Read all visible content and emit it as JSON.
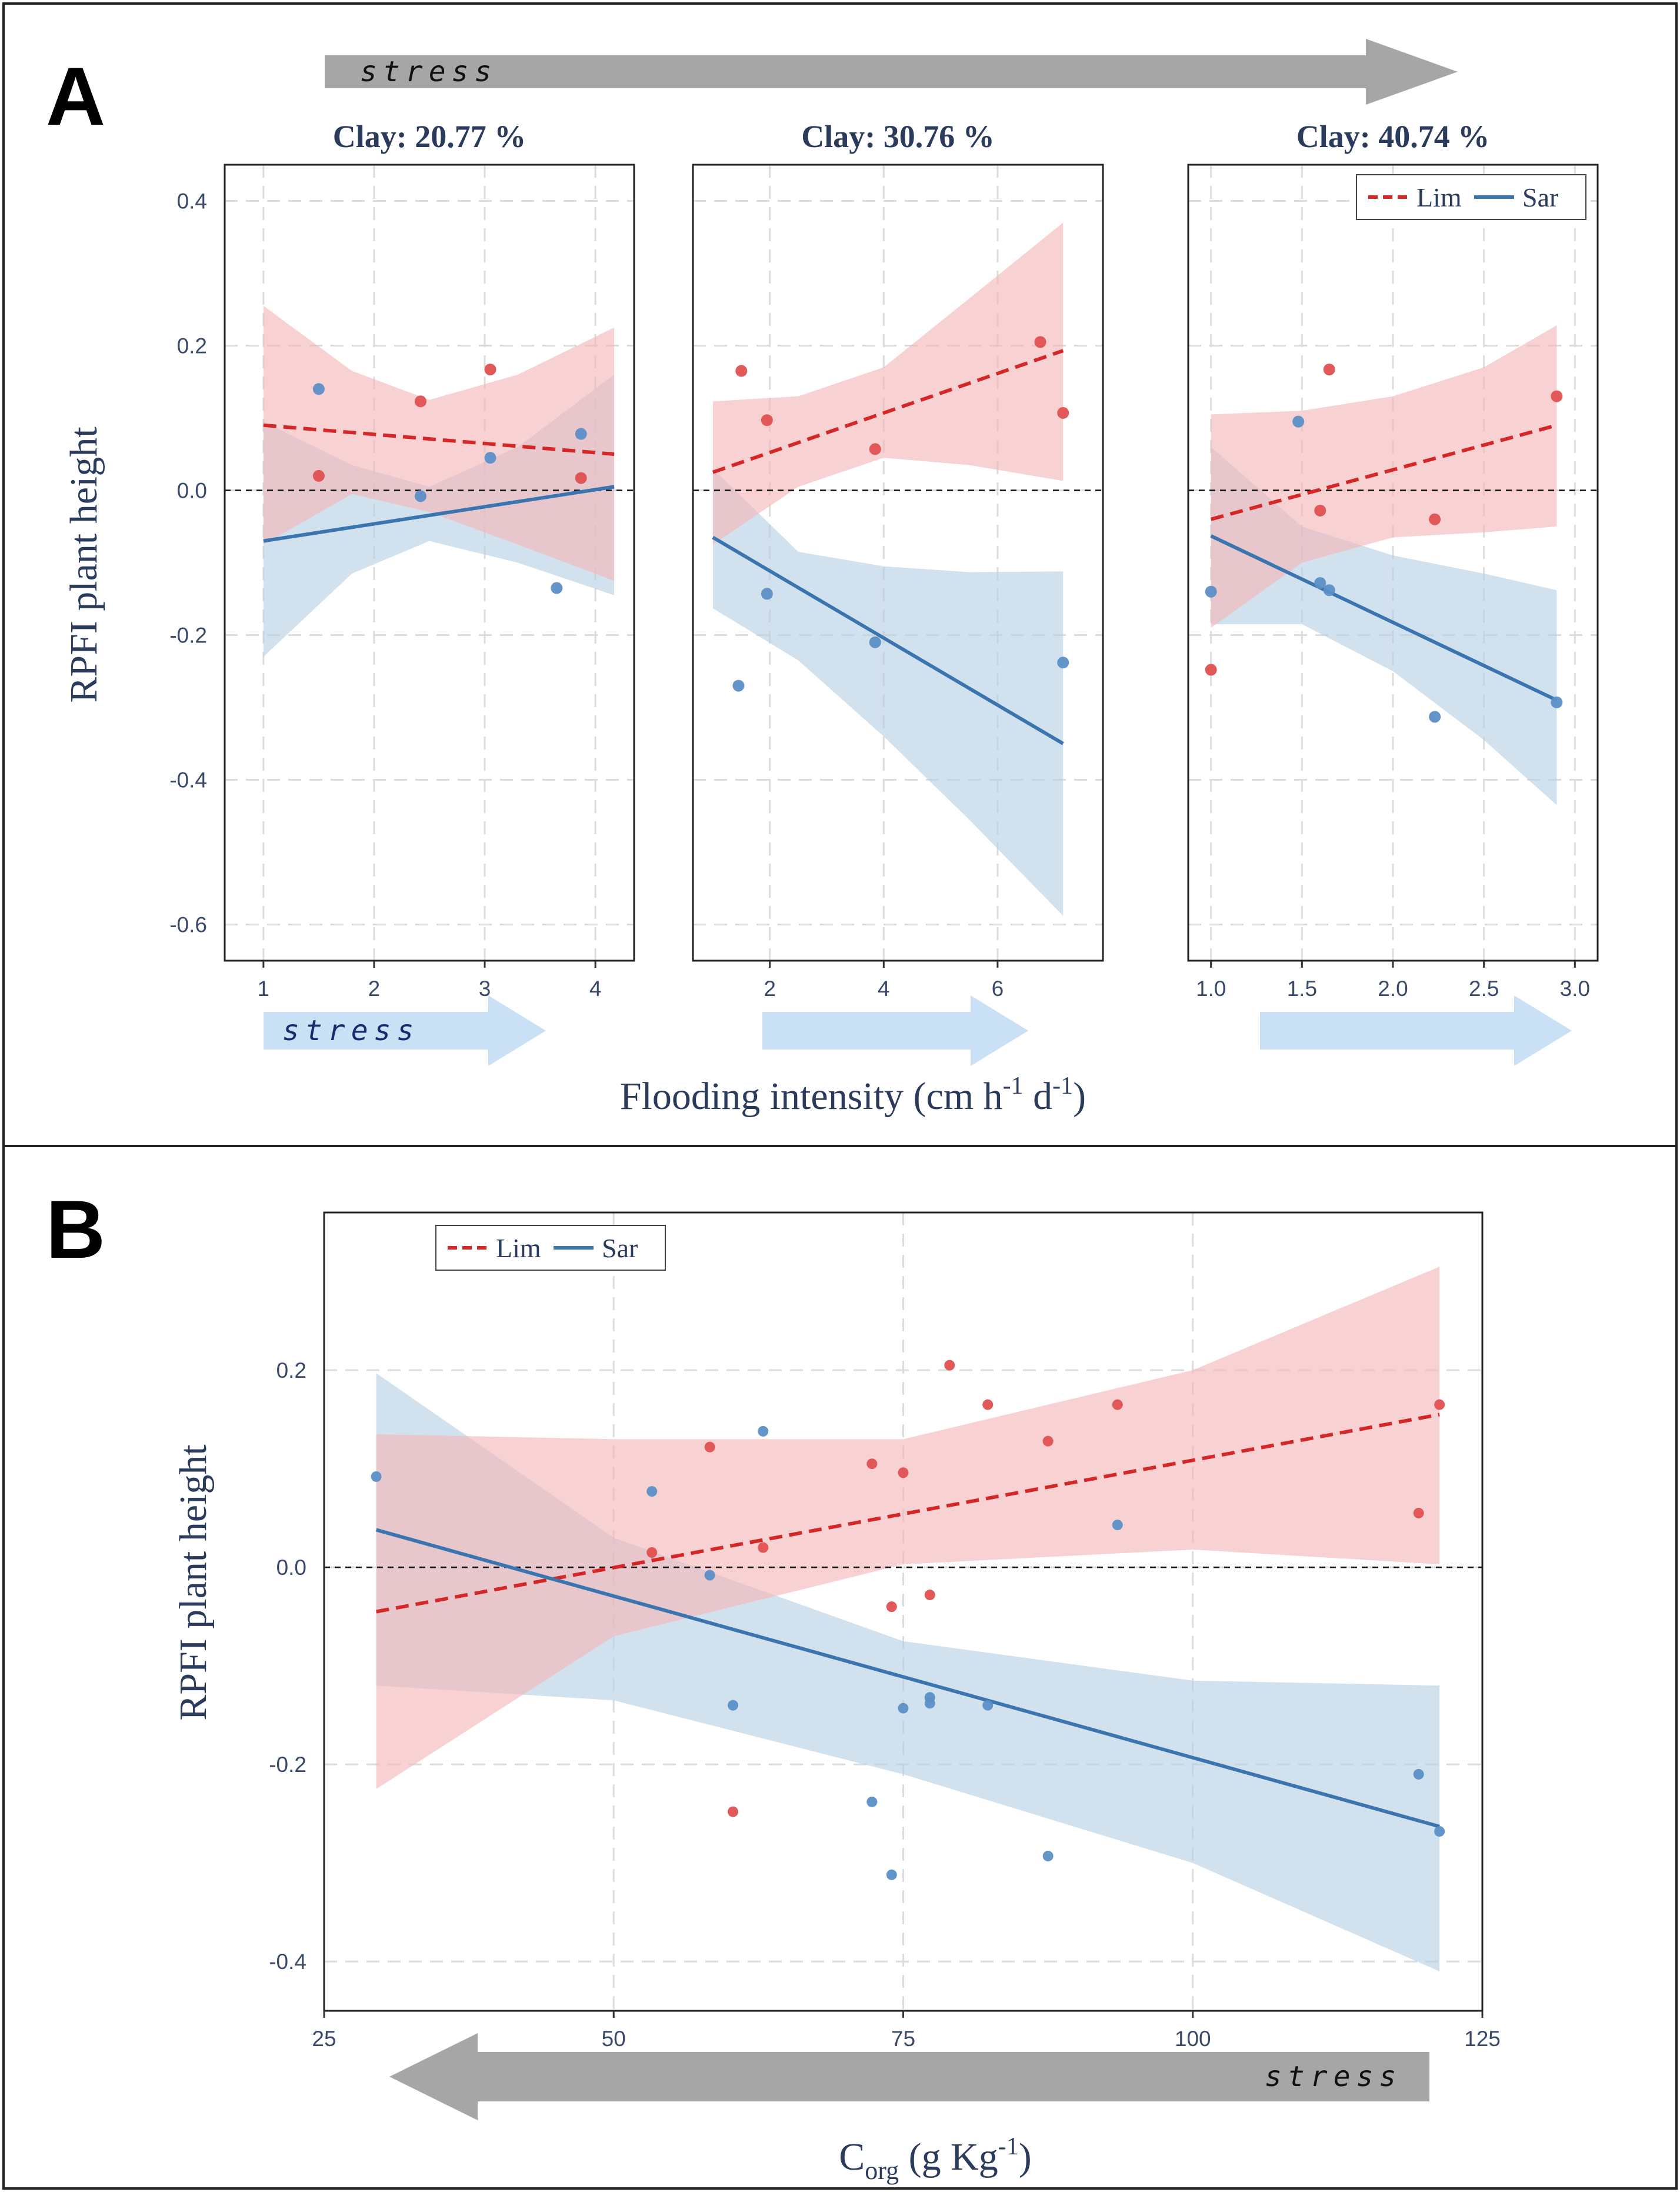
{
  "figure": {
    "panel_a_letter": "A",
    "panel_b_letter": "B",
    "stress_label": "stress",
    "colors": {
      "lim": "#d62728",
      "sar": "#3a75b0",
      "lim_band": "#f4b6b6",
      "sar_band": "#b7cfe4",
      "arrow_gray": "#a6a6a6",
      "arrow_blue": "#c9e0f5"
    }
  },
  "panel_a": {
    "xlabel_main": "Flooding intensity (cm h",
    "xlabel_sup1": "-1",
    "xlabel_mid": " d",
    "xlabel_sup2": "-1",
    "xlabel_end": ")",
    "ylabel": "RPFI plant height"
  },
  "panel_b": {
    "xlabel_main": "C",
    "xlabel_sub": "org",
    "xlabel_rest": " (g Kg",
    "xlabel_sup": "-1",
    "xlabel_end": ")",
    "ylabel": "RPFI plant height"
  },
  "chart_data": [
    {
      "type": "scatter",
      "panel": "A1",
      "title": "Clay: 20.77 %",
      "xlim": [
        0.65,
        4.35
      ],
      "ylim": [
        -0.65,
        0.45
      ],
      "xticks": [
        1,
        2,
        3,
        4
      ],
      "xtick_labels": [
        "1",
        "2",
        "3",
        "4"
      ],
      "yticks": [
        -0.6,
        -0.4,
        -0.2,
        0.0,
        0.2,
        0.4
      ],
      "ytick_labels": [
        "-0.6",
        "-0.4",
        "-0.2",
        "0.0",
        "0.2",
        "0.4"
      ],
      "legend": null,
      "series": [
        {
          "name": "Lim",
          "points": [
            [
              1.5,
              0.02
            ],
            [
              2.42,
              0.123
            ],
            [
              3.05,
              0.167
            ],
            [
              3.87,
              0.017
            ]
          ],
          "fit": [
            [
              1.0,
              0.09
            ],
            [
              4.17,
              0.05
            ]
          ],
          "band_upper": [
            [
              1.0,
              0.255
            ],
            [
              1.8,
              0.165
            ],
            [
              2.5,
              0.125
            ],
            [
              3.3,
              0.16
            ],
            [
              4.17,
              0.225
            ]
          ],
          "band_lower": [
            [
              1.0,
              -0.075
            ],
            [
              1.8,
              -0.005
            ],
            [
              2.5,
              -0.03
            ],
            [
              3.3,
              -0.075
            ],
            [
              4.17,
              -0.125
            ]
          ]
        },
        {
          "name": "Sar",
          "points": [
            [
              1.5,
              0.14
            ],
            [
              2.42,
              -0.008
            ],
            [
              3.05,
              0.045
            ],
            [
              3.65,
              -0.135
            ],
            [
              3.87,
              0.078
            ]
          ],
          "fit": [
            [
              1.0,
              -0.07
            ],
            [
              4.17,
              0.005
            ]
          ],
          "band_upper": [
            [
              1.0,
              0.095
            ],
            [
              1.8,
              0.035
            ],
            [
              2.5,
              0.005
            ],
            [
              3.3,
              0.06
            ],
            [
              4.17,
              0.16
            ]
          ],
          "band_lower": [
            [
              1.0,
              -0.23
            ],
            [
              1.8,
              -0.115
            ],
            [
              2.5,
              -0.07
            ],
            [
              3.3,
              -0.1
            ],
            [
              4.17,
              -0.145
            ]
          ]
        }
      ]
    },
    {
      "type": "scatter",
      "panel": "A2",
      "title": "Clay: 30.76 %",
      "xlim": [
        0.65,
        7.85
      ],
      "ylim": [
        -0.65,
        0.45
      ],
      "xticks": [
        2,
        4,
        6
      ],
      "xtick_labels": [
        "2",
        "4",
        "6"
      ],
      "yticks": [
        -0.6,
        -0.4,
        -0.2,
        0.0,
        0.2,
        0.4
      ],
      "ytick_labels": [
        "-0.6",
        "-0.4",
        "-0.2",
        "0.0",
        "0.2",
        "0.4"
      ],
      "legend": null,
      "series": [
        {
          "name": "Lim",
          "points": [
            [
              1.5,
              0.165
            ],
            [
              1.95,
              0.097
            ],
            [
              3.85,
              0.057
            ],
            [
              6.75,
              0.205
            ],
            [
              7.15,
              0.107
            ]
          ],
          "fit": [
            [
              1.0,
              0.025
            ],
            [
              7.15,
              0.193
            ]
          ],
          "band_upper": [
            [
              1.0,
              0.123
            ],
            [
              2.5,
              0.13
            ],
            [
              4.0,
              0.17
            ],
            [
              5.5,
              0.265
            ],
            [
              7.15,
              0.37
            ]
          ],
          "band_lower": [
            [
              1.0,
              -0.075
            ],
            [
              2.5,
              0.005
            ],
            [
              4.0,
              0.045
            ],
            [
              5.5,
              0.035
            ],
            [
              7.15,
              0.013
            ]
          ]
        },
        {
          "name": "Sar",
          "points": [
            [
              1.45,
              -0.27
            ],
            [
              1.95,
              -0.143
            ],
            [
              3.85,
              -0.21
            ],
            [
              7.15,
              -0.238
            ]
          ],
          "fit": [
            [
              1.0,
              -0.065
            ],
            [
              7.15,
              -0.35
            ]
          ],
          "band_upper": [
            [
              1.0,
              0.03
            ],
            [
              2.5,
              -0.085
            ],
            [
              4.0,
              -0.105
            ],
            [
              5.5,
              -0.113
            ],
            [
              7.15,
              -0.112
            ]
          ],
          "band_lower": [
            [
              1.0,
              -0.163
            ],
            [
              2.5,
              -0.235
            ],
            [
              4.0,
              -0.34
            ],
            [
              5.5,
              -0.455
            ],
            [
              7.15,
              -0.588
            ]
          ]
        }
      ]
    },
    {
      "type": "scatter",
      "panel": "A3",
      "title": "Clay: 40.74 %",
      "xlim": [
        0.875,
        3.125
      ],
      "ylim": [
        -0.65,
        0.45
      ],
      "xticks": [
        1.0,
        1.5,
        2.0,
        2.5,
        3.0
      ],
      "xtick_labels": [
        "1.0",
        "1.5",
        "2.0",
        "2.5",
        "3.0"
      ],
      "yticks": [
        -0.6,
        -0.4,
        -0.2,
        0.0,
        0.2,
        0.4
      ],
      "ytick_labels": [
        "-0.6",
        "-0.4",
        "-0.2",
        "0.0",
        "0.2",
        "0.4"
      ],
      "legend": {
        "position": "top-right",
        "entries": [
          "Lim",
          "Sar"
        ]
      },
      "series": [
        {
          "name": "Lim",
          "points": [
            [
              1.0,
              -0.248
            ],
            [
              1.6,
              -0.028
            ],
            [
              1.65,
              0.167
            ],
            [
              2.23,
              -0.04
            ],
            [
              2.9,
              0.13
            ]
          ],
          "fit": [
            [
              1.0,
              -0.04
            ],
            [
              2.9,
              0.09
            ]
          ],
          "band_upper": [
            [
              1.0,
              0.105
            ],
            [
              1.5,
              0.11
            ],
            [
              2.0,
              0.13
            ],
            [
              2.5,
              0.17
            ],
            [
              2.9,
              0.228
            ]
          ],
          "band_lower": [
            [
              1.0,
              -0.19
            ],
            [
              1.5,
              -0.1
            ],
            [
              2.0,
              -0.065
            ],
            [
              2.5,
              -0.058
            ],
            [
              2.9,
              -0.05
            ]
          ]
        },
        {
          "name": "Sar",
          "points": [
            [
              1.0,
              -0.14
            ],
            [
              1.48,
              0.095
            ],
            [
              1.6,
              -0.128
            ],
            [
              1.65,
              -0.138
            ],
            [
              2.23,
              -0.313
            ],
            [
              2.9,
              -0.293
            ]
          ],
          "fit": [
            [
              1.0,
              -0.063
            ],
            [
              2.9,
              -0.29
            ]
          ],
          "band_upper": [
            [
              1.0,
              0.06
            ],
            [
              1.5,
              -0.05
            ],
            [
              2.0,
              -0.09
            ],
            [
              2.5,
              -0.115
            ],
            [
              2.9,
              -0.138
            ]
          ],
          "band_lower": [
            [
              1.0,
              -0.185
            ],
            [
              1.5,
              -0.185
            ],
            [
              2.0,
              -0.25
            ],
            [
              2.5,
              -0.345
            ],
            [
              2.9,
              -0.435
            ]
          ]
        }
      ]
    },
    {
      "type": "scatter",
      "panel": "B",
      "title": "",
      "xlim": [
        25,
        125
      ],
      "ylim": [
        -0.45,
        0.36
      ],
      "xticks": [
        25,
        50,
        75,
        100,
        125
      ],
      "xtick_labels": [
        "25",
        "50",
        "75",
        "100",
        "125"
      ],
      "yticks": [
        -0.4,
        -0.2,
        0.0,
        0.2
      ],
      "ytick_labels": [
        "-0.4",
        "-0.2",
        "0.0",
        "0.2"
      ],
      "legend": {
        "position": "top-left",
        "entries": [
          "Lim",
          "Sar"
        ]
      },
      "series": [
        {
          "name": "Lim",
          "points": [
            [
              53.3,
              0.015
            ],
            [
              58.3,
              0.122
            ],
            [
              60.3,
              -0.248
            ],
            [
              62.9,
              0.02
            ],
            [
              72.3,
              0.105
            ],
            [
              74.0,
              -0.04
            ],
            [
              75.0,
              0.096
            ],
            [
              77.3,
              -0.028
            ],
            [
              79.0,
              0.205
            ],
            [
              82.3,
              0.165
            ],
            [
              87.5,
              0.128
            ],
            [
              93.5,
              0.165
            ],
            [
              119.5,
              0.055
            ],
            [
              121.3,
              0.165
            ]
          ],
          "fit": [
            [
              29.5,
              -0.045
            ],
            [
              121.3,
              0.155
            ]
          ],
          "band_upper": [
            [
              29.5,
              0.135
            ],
            [
              50,
              0.13
            ],
            [
              75,
              0.13
            ],
            [
              100,
              0.2
            ],
            [
              121.3,
              0.305
            ]
          ],
          "band_lower": [
            [
              29.5,
              -0.225
            ],
            [
              50,
              -0.07
            ],
            [
              75,
              0.003
            ],
            [
              100,
              0.018
            ],
            [
              121.3,
              0.003
            ]
          ]
        },
        {
          "name": "Sar",
          "points": [
            [
              29.5,
              0.092
            ],
            [
              53.3,
              0.077
            ],
            [
              58.3,
              -0.008
            ],
            [
              60.3,
              -0.14
            ],
            [
              62.9,
              0.138
            ],
            [
              72.3,
              -0.238
            ],
            [
              74.0,
              -0.312
            ],
            [
              75.0,
              -0.143
            ],
            [
              77.3,
              -0.132
            ],
            [
              77.3,
              -0.138
            ],
            [
              82.3,
              -0.14
            ],
            [
              87.5,
              -0.293
            ],
            [
              93.5,
              0.043
            ],
            [
              119.5,
              -0.21
            ],
            [
              121.3,
              -0.268
            ]
          ],
          "fit": [
            [
              29.5,
              0.038
            ],
            [
              121.3,
              -0.263
            ]
          ],
          "band_upper": [
            [
              29.5,
              0.197
            ],
            [
              50,
              0.03
            ],
            [
              75,
              -0.075
            ],
            [
              100,
              -0.115
            ],
            [
              121.3,
              -0.12
            ]
          ],
          "band_lower": [
            [
              29.5,
              -0.12
            ],
            [
              50,
              -0.135
            ],
            [
              75,
              -0.21
            ],
            [
              100,
              -0.3
            ],
            [
              121.3,
              -0.41
            ]
          ]
        }
      ]
    }
  ]
}
